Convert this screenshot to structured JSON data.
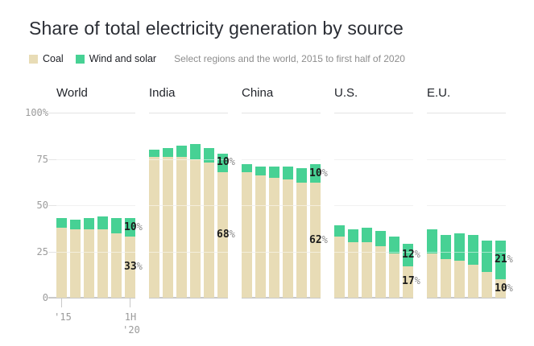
{
  "title": "Share of total electricity generation by source",
  "legend": {
    "coal": "Coal",
    "wind_solar": "Wind and solar"
  },
  "subtitle": "Select regions and the world, 2015 to first half of 2020",
  "colors": {
    "coal": "#e8dcb6",
    "wind_solar": "#47d194",
    "grid": "#e3e3e3",
    "zero_line": "#c9c9c9",
    "tick_text": "#9b9b9b",
    "annotation_number": "#1c1c1c",
    "annotation_percent": "#8d8d8d"
  },
  "y_axis": {
    "ticks": [
      {
        "label": "100%",
        "value": 100
      },
      {
        "label": "75",
        "value": 75
      },
      {
        "label": "50",
        "value": 50
      },
      {
        "label": "25",
        "value": 25
      },
      {
        "label": "0",
        "value": 0
      }
    ]
  },
  "x_axis": {
    "first_label": "'15",
    "last_label_line1": "1H",
    "last_label_line2": "'20"
  },
  "chart_data": {
    "type": "bar",
    "stacked": true,
    "unit": "%",
    "ylim": [
      0,
      100
    ],
    "grid": true,
    "years": [
      "2015",
      "2016",
      "2017",
      "2018",
      "2019",
      "1H 2020"
    ],
    "series_names": [
      "Coal",
      "Wind and solar"
    ],
    "groups": [
      {
        "name": "World",
        "coal": [
          38,
          37,
          37,
          37,
          35,
          33
        ],
        "wind_solar": [
          5,
          5,
          6,
          7,
          8,
          10
        ],
        "label_wind_solar": "10%",
        "label_coal": "33%"
      },
      {
        "name": "India",
        "coal": [
          76,
          76,
          76,
          75,
          73,
          68
        ],
        "wind_solar": [
          4,
          5,
          6,
          8,
          8,
          10
        ],
        "label_wind_solar": "10%",
        "label_coal": "68%"
      },
      {
        "name": "China",
        "coal": [
          68,
          66,
          65,
          64,
          62,
          62
        ],
        "wind_solar": [
          4,
          5,
          6,
          7,
          8,
          10
        ],
        "label_wind_solar": "10%",
        "label_coal": "62%"
      },
      {
        "name": "U.S.",
        "coal": [
          33,
          30,
          30,
          28,
          24,
          17
        ],
        "wind_solar": [
          6,
          7,
          8,
          8,
          9,
          12
        ],
        "label_wind_solar": "12%",
        "label_coal": "17%"
      },
      {
        "name": "E.U.",
        "coal": [
          24,
          21,
          20,
          18,
          14,
          10
        ],
        "wind_solar": [
          13,
          13,
          15,
          16,
          17,
          21
        ],
        "label_wind_solar": "21%",
        "label_coal": "10%"
      }
    ]
  }
}
